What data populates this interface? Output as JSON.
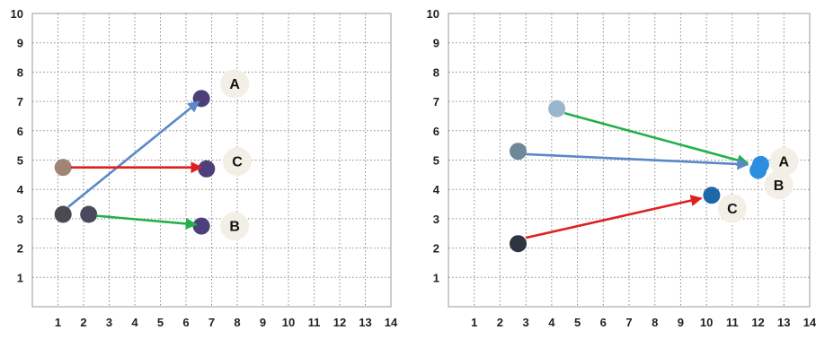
{
  "colors": {
    "grid": "#8a8a8a",
    "frame": "#9a9a9a",
    "label_bubble": "#f2f0e6",
    "arrow_blue": "#5a88c8",
    "arrow_red": "#e02020",
    "arrow_green": "#22b04a"
  },
  "chart_data": [
    {
      "type": "scatter",
      "title": "",
      "xlabel": "",
      "ylabel": "",
      "xlim": [
        0,
        14
      ],
      "ylim": [
        0,
        10
      ],
      "x_ticks": [
        "1",
        "2",
        "3",
        "4",
        "5",
        "6",
        "7",
        "8",
        "9",
        "10",
        "11",
        "12",
        "13",
        "14"
      ],
      "y_ticks": [
        "1",
        "2",
        "3",
        "4",
        "5",
        "6",
        "7",
        "8",
        "9",
        "10"
      ],
      "grid": true,
      "points": [
        {
          "x": 1.2,
          "y": 4.75,
          "color": "#a08577"
        },
        {
          "x": 1.2,
          "y": 3.15,
          "color": "#4a4a52"
        },
        {
          "x": 2.2,
          "y": 3.15,
          "color": "#4a4a5c"
        },
        {
          "x": 6.6,
          "y": 7.1,
          "color": "#4d3f7a"
        },
        {
          "x": 6.8,
          "y": 4.7,
          "color": "#4d3f7a"
        },
        {
          "x": 6.6,
          "y": 2.75,
          "color": "#4d3f7a"
        }
      ],
      "arrows": [
        {
          "from": [
            1.4,
            3.4
          ],
          "to": [
            6.5,
            7.0
          ],
          "color": "#5a88c8"
        },
        {
          "from": [
            1.5,
            4.75
          ],
          "to": [
            6.6,
            4.75
          ],
          "color": "#e02020"
        },
        {
          "from": [
            2.5,
            3.1
          ],
          "to": [
            6.4,
            2.8
          ],
          "color": "#22b04a"
        }
      ],
      "labels": [
        {
          "text": "A",
          "x": 7.9,
          "y": 7.6
        },
        {
          "text": "C",
          "x": 8.0,
          "y": 4.95
        },
        {
          "text": "B",
          "x": 7.9,
          "y": 2.75
        }
      ]
    },
    {
      "type": "scatter",
      "title": "",
      "xlabel": "",
      "ylabel": "",
      "xlim": [
        0,
        14
      ],
      "ylim": [
        0,
        10
      ],
      "x_ticks": [
        "1",
        "2",
        "3",
        "4",
        "5",
        "6",
        "7",
        "8",
        "9",
        "10",
        "11",
        "12",
        "13",
        "14"
      ],
      "y_ticks": [
        "1",
        "2",
        "3",
        "4",
        "5",
        "6",
        "7",
        "8",
        "9",
        "10"
      ],
      "grid": true,
      "points": [
        {
          "x": 4.2,
          "y": 6.75,
          "color": "#9ab6cc"
        },
        {
          "x": 2.7,
          "y": 5.3,
          "color": "#6f8898"
        },
        {
          "x": 2.7,
          "y": 2.15,
          "color": "#2e3440"
        },
        {
          "x": 10.2,
          "y": 3.8,
          "color": "#1f68a8"
        },
        {
          "x": 12.1,
          "y": 4.85,
          "color": "#2b8ee0"
        },
        {
          "x": 12.0,
          "y": 4.65,
          "color": "#2b8ee0"
        }
      ],
      "arrows": [
        {
          "from": [
            4.5,
            6.6
          ],
          "to": [
            11.6,
            4.9
          ],
          "color": "#22b04a"
        },
        {
          "from": [
            3.0,
            5.2
          ],
          "to": [
            11.6,
            4.85
          ],
          "color": "#5a88c8"
        },
        {
          "from": [
            3.0,
            2.35
          ],
          "to": [
            9.8,
            3.7
          ],
          "color": "#e02020"
        }
      ],
      "labels": [
        {
          "text": "A",
          "x": 13.0,
          "y": 4.95
        },
        {
          "text": "B",
          "x": 12.8,
          "y": 4.15
        },
        {
          "text": "C",
          "x": 11.0,
          "y": 3.35
        }
      ]
    }
  ]
}
